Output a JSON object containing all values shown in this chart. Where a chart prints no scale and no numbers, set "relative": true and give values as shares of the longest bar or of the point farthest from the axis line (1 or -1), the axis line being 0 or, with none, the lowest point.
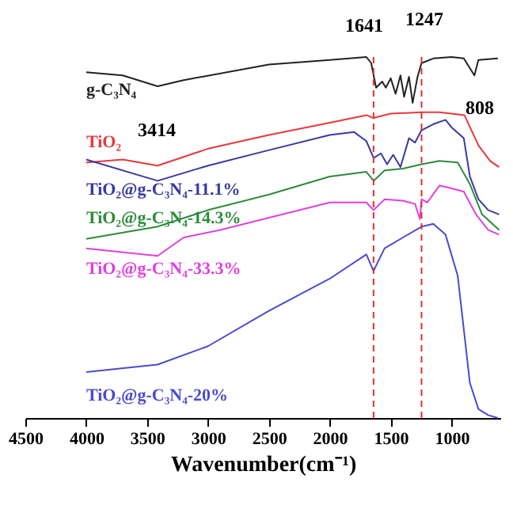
{
  "chart_data": {
    "type": "line",
    "relative": true,
    "xlabel": "Wavenumber(cm⁻¹)",
    "xlim": [
      4500,
      600
    ],
    "xticks": [
      4500,
      4000,
      3500,
      3000,
      2500,
      2000,
      1500,
      1000
    ],
    "tick_labels": "x",
    "grid": false,
    "legend": false,
    "line_style": "solid",
    "marker": "none",
    "series": [
      {
        "name": "g-C₃N₄",
        "color": "#222222",
        "x": [
          4000,
          3700,
          3414,
          3200,
          2500,
          2000,
          1700,
          1660,
          1620,
          1570,
          1540,
          1500,
          1460,
          1420,
          1390,
          1350,
          1320,
          1280,
          1247,
          1150,
          1000,
          900,
          813,
          780,
          620
        ],
        "values": [
          0.958,
          0.949,
          0.919,
          0.936,
          0.979,
          0.992,
          1.0,
          0.983,
          0.915,
          0.932,
          0.915,
          0.941,
          0.898,
          0.949,
          0.89,
          0.945,
          0.873,
          0.945,
          0.983,
          0.996,
          1.0,
          0.996,
          0.949,
          0.992,
          0.996
        ]
      },
      {
        "name": "TiO₂",
        "color": "#e8383d",
        "x": [
          4000,
          3700,
          3414,
          3000,
          2500,
          2000,
          1700,
          1641,
          1500,
          1247,
          1100,
          895,
          778,
          683,
          610
        ],
        "values": [
          0.708,
          0.716,
          0.699,
          0.746,
          0.784,
          0.818,
          0.839,
          0.831,
          0.843,
          0.847,
          0.847,
          0.839,
          0.754,
          0.712,
          0.695
        ]
      },
      {
        "name": "TiO₂@g-C₃N₄-11.1%",
        "color": "#3a3aa0",
        "x": [
          4000,
          3414,
          3000,
          2500,
          2000,
          1800,
          1700,
          1640,
          1580,
          1530,
          1480,
          1420,
          1350,
          1300,
          1247,
          1150,
          1050,
          1000,
          900,
          850,
          780,
          700,
          610
        ],
        "values": [
          0.716,
          0.657,
          0.699,
          0.742,
          0.784,
          0.792,
          0.767,
          0.72,
          0.733,
          0.703,
          0.729,
          0.695,
          0.775,
          0.763,
          0.797,
          0.814,
          0.826,
          0.805,
          0.775,
          0.669,
          0.606,
          0.576,
          0.564
        ]
      },
      {
        "name": "TiO₂@g-C₃N₄-14.3%",
        "color": "#2e8b3a",
        "x": [
          4000,
          3414,
          3000,
          2500,
          2000,
          1700,
          1641,
          1550,
          1400,
          1247,
          1100,
          950,
          850,
          750,
          610
        ],
        "values": [
          0.496,
          0.53,
          0.576,
          0.619,
          0.669,
          0.682,
          0.657,
          0.686,
          0.691,
          0.703,
          0.712,
          0.708,
          0.648,
          0.564,
          0.521
        ]
      },
      {
        "name": "TiO₂@g-C₃N₄-33.3%",
        "color": "#e040e0",
        "x": [
          4000,
          3414,
          3200,
          2900,
          2500,
          2000,
          1700,
          1641,
          1550,
          1400,
          1300,
          1260,
          1247,
          1200,
          1100,
          1000,
          900,
          800,
          700,
          610
        ],
        "values": [
          0.47,
          0.449,
          0.5,
          0.521,
          0.555,
          0.597,
          0.597,
          0.576,
          0.606,
          0.602,
          0.593,
          0.551,
          0.606,
          0.597,
          0.644,
          0.636,
          0.627,
          0.564,
          0.521,
          0.508
        ]
      },
      {
        "name": "TiO₂@g-C₃N₄-20%",
        "color": "#4a4ad0",
        "x": [
          4000,
          3414,
          3000,
          2500,
          2000,
          1700,
          1641,
          1600,
          1550,
          1400,
          1247,
          1150,
          1050,
          950,
          900,
          850,
          780,
          700,
          620
        ],
        "values": [
          0.127,
          0.148,
          0.199,
          0.297,
          0.386,
          0.453,
          0.407,
          0.436,
          0.47,
          0.5,
          0.53,
          0.538,
          0.508,
          0.394,
          0.246,
          0.097,
          0.025,
          0.008,
          0.0
        ]
      }
    ],
    "ref_lines": [
      {
        "axis": "x",
        "value": 1641,
        "color": "#e03030",
        "line_style": "dashed"
      },
      {
        "axis": "x",
        "value": 1247,
        "color": "#e03030",
        "line_style": "dashed"
      }
    ],
    "annotations": [
      "1641",
      "1247",
      "3414",
      "808"
    ]
  }
}
